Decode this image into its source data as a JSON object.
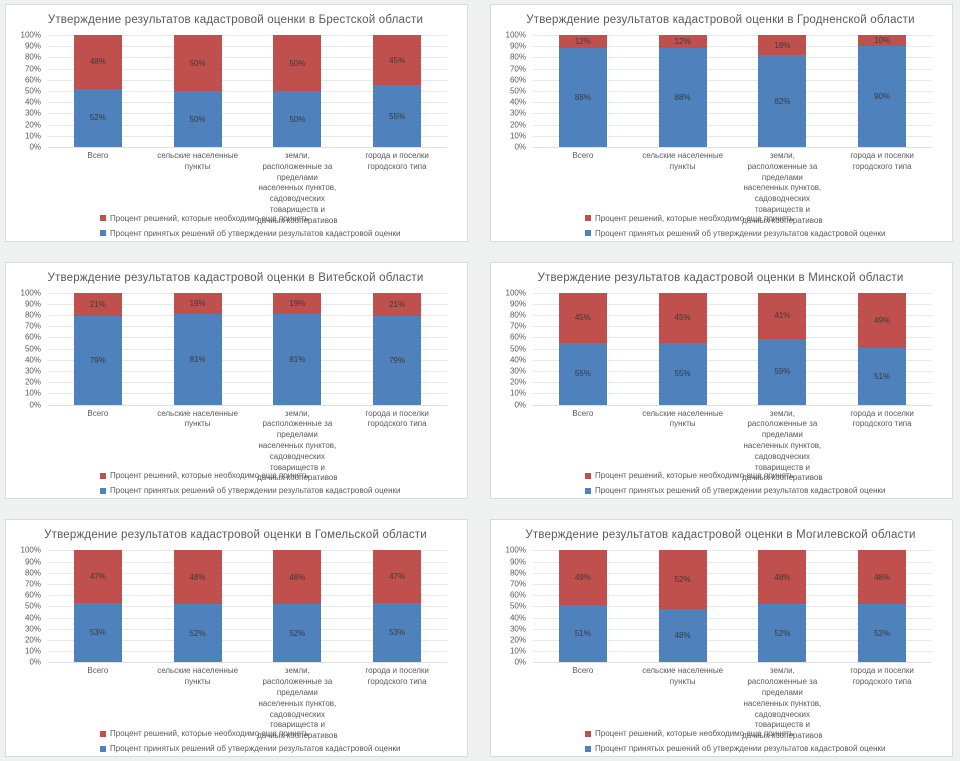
{
  "colors": {
    "approved_blue": "#4f81bd",
    "pending_red": "#c0504d"
  },
  "y_axis_ticks": [
    "100%",
    "90%",
    "80%",
    "70%",
    "60%",
    "50%",
    "40%",
    "30%",
    "20%",
    "10%",
    "0%"
  ],
  "legend": [
    {
      "color": "#c0504d",
      "label": "Процент решений, которые необходимо еще принять"
    },
    {
      "color": "#4f81bd",
      "label": "Процент принятых решений об утверждении результатов кадастровой оценки"
    }
  ],
  "chart_data": [
    {
      "type": "bar",
      "stacked": true,
      "title": "Утверждение результатов кадастровой оценки в Брестской области",
      "categories": [
        "Всего",
        "сельские населенные пункты",
        "земли, расположенные за пределами населенных пунктов, садоводческих товариществ и дачных кооперативов",
        "города и поселки городского типа"
      ],
      "ylim": [
        0,
        100
      ],
      "series": [
        {
          "name": "Процент принятых решений об утверждении результатов кадастровой оценки",
          "color": "#4f81bd",
          "values": [
            52,
            50,
            50,
            55
          ],
          "labels": [
            "52%",
            "50%",
            "50%",
            "55%"
          ]
        },
        {
          "name": "Процент решений, которые необходимо еще принять",
          "color": "#c0504d",
          "values": [
            48,
            50,
            50,
            45
          ],
          "labels": [
            "48%",
            "50%",
            "50%",
            "45%"
          ]
        }
      ]
    },
    {
      "type": "bar",
      "stacked": true,
      "title": "Утверждение результатов кадастровой оценки в Гродненской области",
      "categories": [
        "Всего",
        "сельские населенные пункты",
        "земли, расположенные за пределами населенных пунктов, садоводческих товариществ и дачных кооперативов",
        "города и поселки городского типа"
      ],
      "ylim": [
        0,
        100
      ],
      "series": [
        {
          "name": "Процент принятых решений об утверждении результатов кадастровой оценки",
          "color": "#4f81bd",
          "values": [
            88,
            88,
            82,
            90
          ],
          "labels": [
            "88%",
            "88%",
            "82%",
            "90%"
          ]
        },
        {
          "name": "Процент решений, которые необходимо еще принять",
          "color": "#c0504d",
          "values": [
            12,
            12,
            18,
            10
          ],
          "labels": [
            "12%",
            "12%",
            "18%",
            "10%"
          ]
        }
      ]
    },
    {
      "type": "bar",
      "stacked": true,
      "title": "Утверждение результатов кадастровой оценки в Витебской области",
      "categories": [
        "Всего",
        "сельские населенные пункты",
        "земли, расположенные за пределами населенных пунктов, садоводческих товариществ и дачных кооперативов",
        "города и поселки городского типа"
      ],
      "ylim": [
        0,
        100
      ],
      "series": [
        {
          "name": "Процент принятых решений об утверждении результатов кадастровой оценки",
          "color": "#4f81bd",
          "values": [
            79,
            81,
            81,
            79
          ],
          "labels": [
            "79%",
            "81%",
            "81%",
            "79%"
          ]
        },
        {
          "name": "Процент решений, которые необходимо еще принять",
          "color": "#c0504d",
          "values": [
            21,
            19,
            19,
            21
          ],
          "labels": [
            "21%",
            "19%",
            "19%",
            "21%"
          ]
        }
      ]
    },
    {
      "type": "bar",
      "stacked": true,
      "title": "Утверждение результатов кадастровой оценки в Минской области",
      "categories": [
        "Всего",
        "сельские населенные пункты",
        "земли, расположенные за пределами населенных пунктов, садоводческих товариществ и дачных кооперативов",
        "города и поселки городского типа"
      ],
      "ylim": [
        0,
        100
      ],
      "series": [
        {
          "name": "Процент принятых решений об утверждении результатов кадастровой оценки",
          "color": "#4f81bd",
          "values": [
            55,
            55,
            59,
            51
          ],
          "labels": [
            "55%",
            "55%",
            "59%",
            "51%"
          ]
        },
        {
          "name": "Процент решений, которые необходимо еще принять",
          "color": "#c0504d",
          "values": [
            45,
            45,
            41,
            49
          ],
          "labels": [
            "45%",
            "45%",
            "41%",
            "49%"
          ]
        }
      ]
    },
    {
      "type": "bar",
      "stacked": true,
      "title": "Утверждение результатов кадастровой оценки в Гомельской области",
      "categories": [
        "Всего",
        "сельские населенные пункты",
        "земли, расположенные за пределами населенных пунктов, садоводческих товариществ и дачных кооперативов",
        "города и поселки городского типа"
      ],
      "ylim": [
        0,
        100
      ],
      "series": [
        {
          "name": "Процент принятых решений об утверждении результатов кадастровой оценки",
          "color": "#4f81bd",
          "values": [
            53,
            52,
            52,
            53
          ],
          "labels": [
            "53%",
            "52%",
            "52%",
            "53%"
          ]
        },
        {
          "name": "Процент решений, которые необходимо еще принять",
          "color": "#c0504d",
          "values": [
            47,
            48,
            48,
            47
          ],
          "labels": [
            "47%",
            "48%",
            "48%",
            "47%"
          ]
        }
      ]
    },
    {
      "type": "bar",
      "stacked": true,
      "title": "Утверждение результатов кадастровой оценки в Могилевской области",
      "categories": [
        "Всего",
        "сельские населенные пункты",
        "земли, расположенные за пределами населенных пунктов, садоводческих товариществ и дачных кооперативов",
        "города и поселки городского типа"
      ],
      "ylim": [
        0,
        100
      ],
      "series": [
        {
          "name": "Процент принятых решений об утверждении результатов кадастровой оценки",
          "color": "#4f81bd",
          "values": [
            51,
            48,
            52,
            52
          ],
          "labels": [
            "51%",
            "48%",
            "52%",
            "52%"
          ]
        },
        {
          "name": "Процент решений, которые необходимо еще принять",
          "color": "#c0504d",
          "values": [
            49,
            52,
            48,
            48
          ],
          "labels": [
            "49%",
            "52%",
            "48%",
            "48%"
          ]
        }
      ]
    }
  ]
}
